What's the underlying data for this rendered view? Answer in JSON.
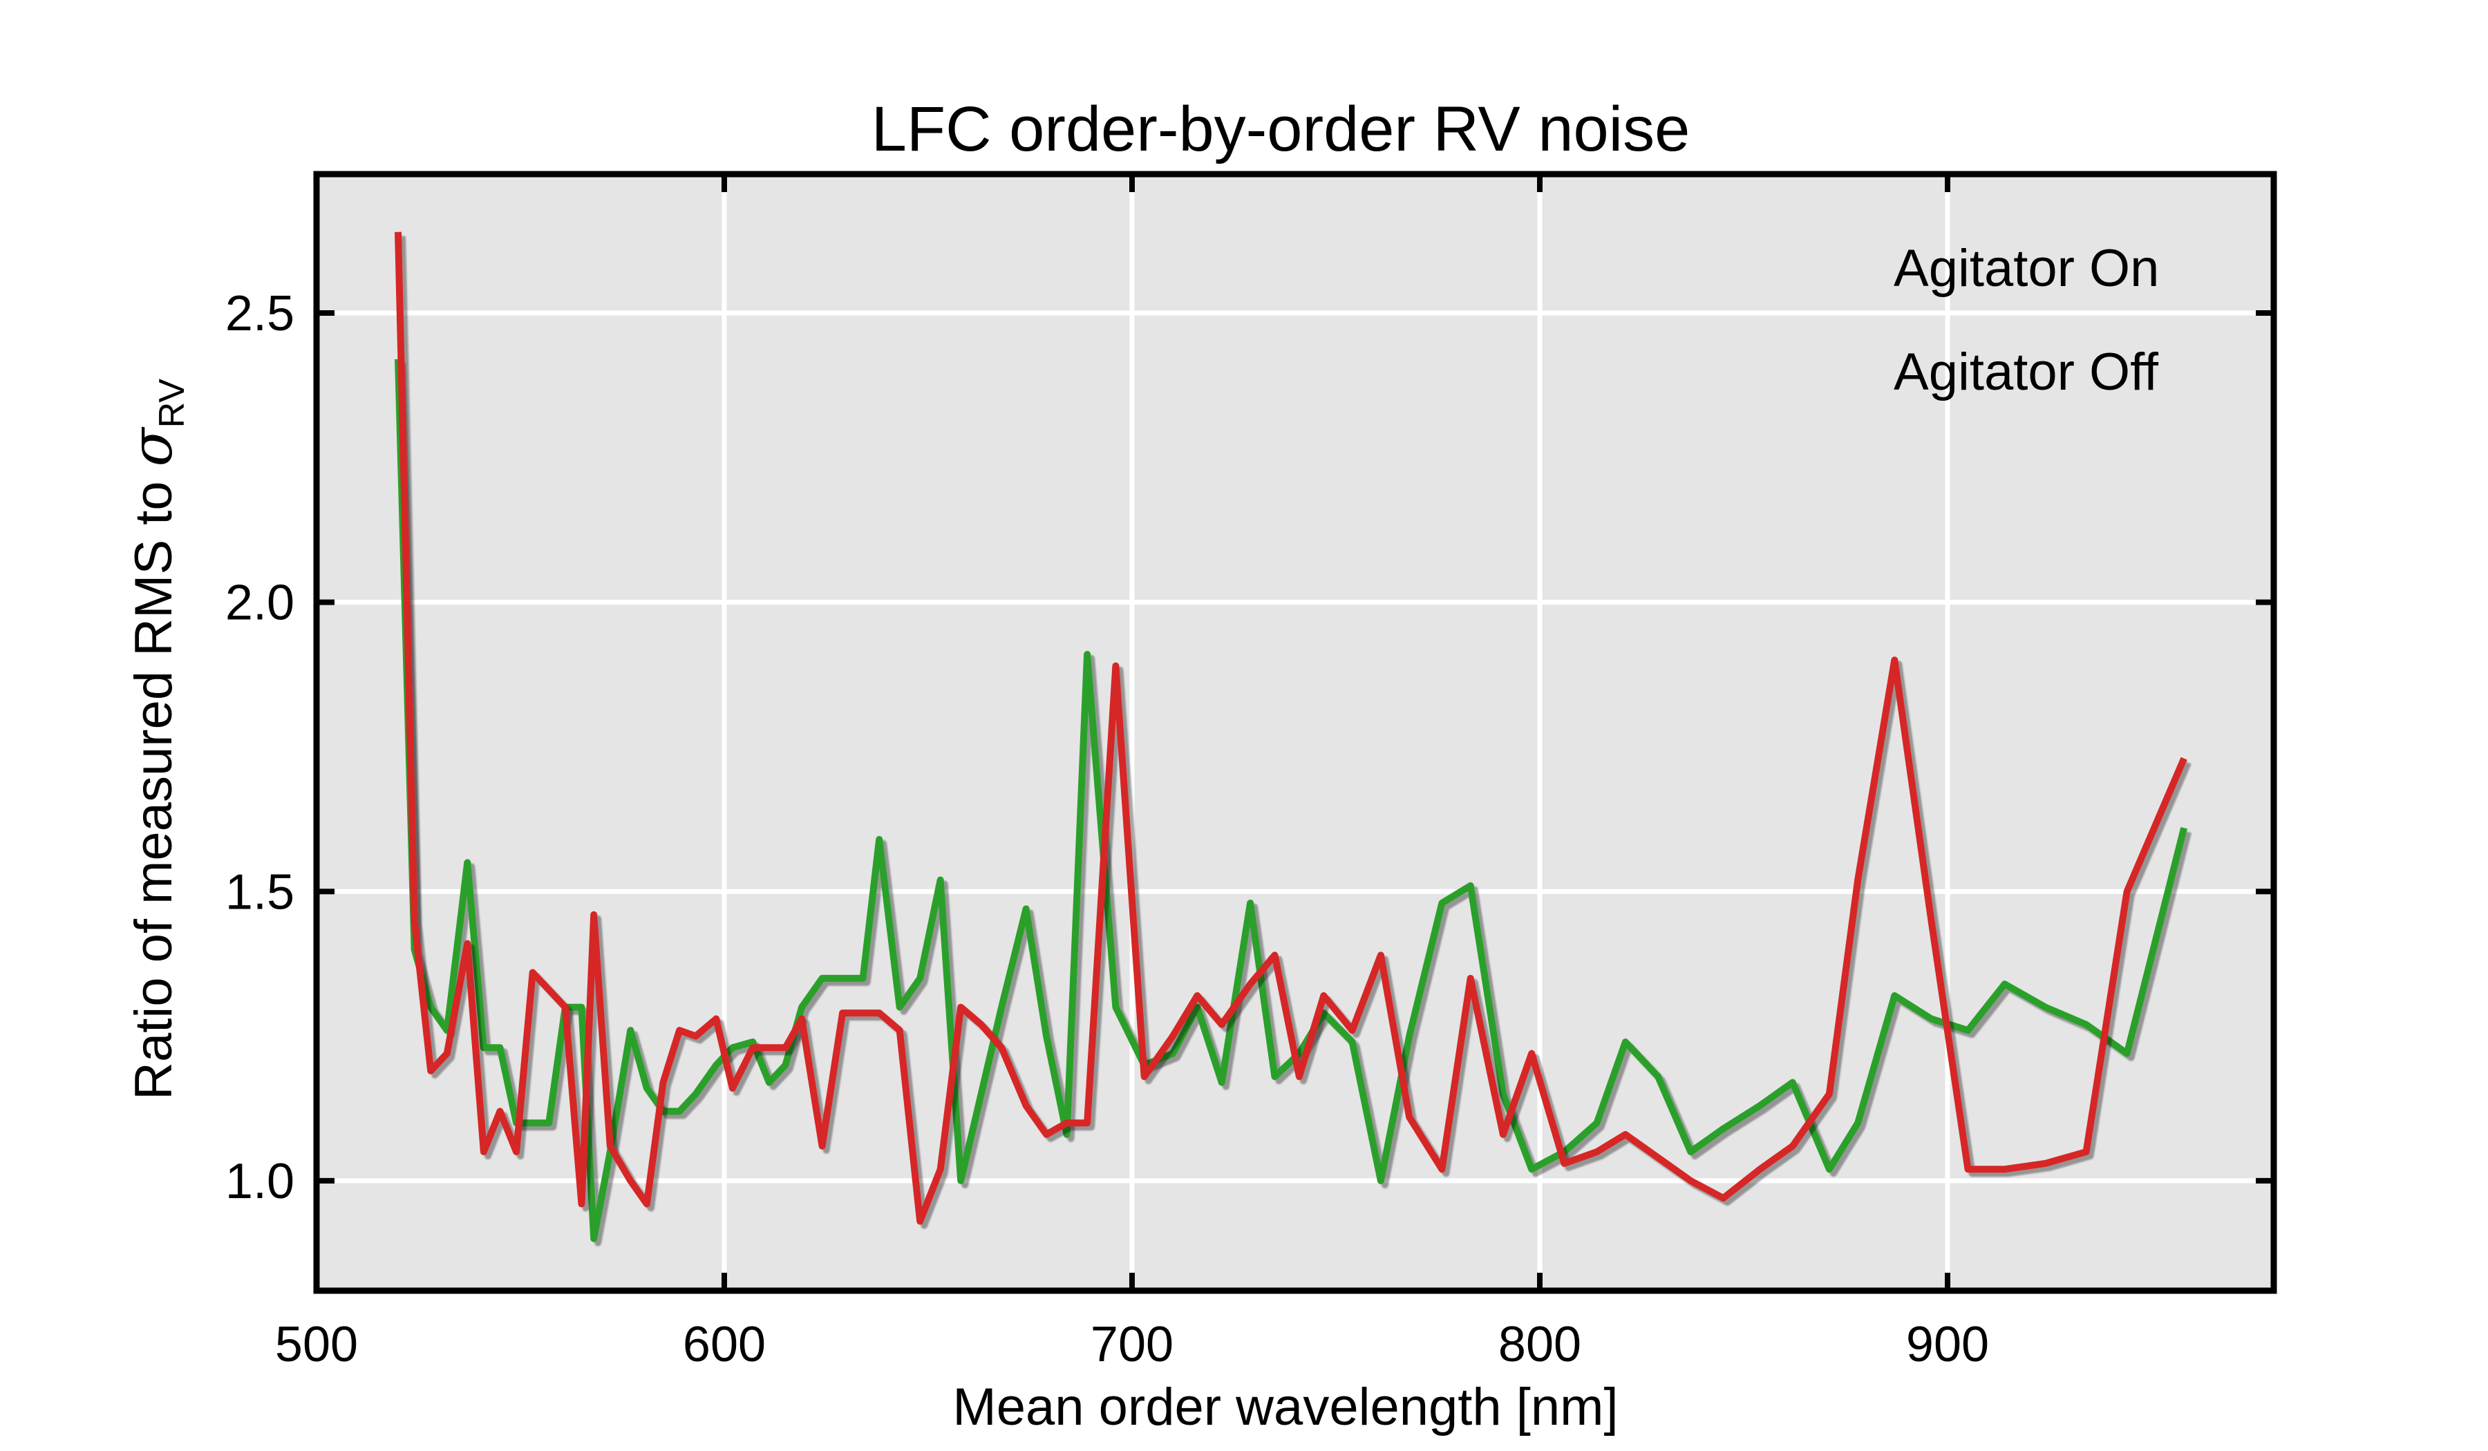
{
  "chart_data": {
    "type": "line",
    "title": "LFC order-by-order RV noise",
    "xlabel": "Mean order wavelength [nm]",
    "ylabel_main": "Ratio of measured RMS to ",
    "ylabel_symbol": "σ",
    "ylabel_subscript": "RV",
    "xlim": [
      500,
      980
    ],
    "ylim": [
      0.81,
      2.74
    ],
    "xticks": [
      500,
      600,
      700,
      800,
      900
    ],
    "xtick_labels": [
      "500",
      "600",
      "700",
      "800",
      "900"
    ],
    "yticks": [
      1.0,
      1.5,
      2.0,
      2.5
    ],
    "ytick_labels": [
      "1.0",
      "1.5",
      "2.0",
      "2.5"
    ],
    "grid": true,
    "legend_position": "top-right",
    "series": [
      {
        "name": "Agitator On",
        "color": "#2ca02c",
        "x": [
          520,
          524,
          528,
          532,
          537,
          541,
          545,
          549,
          553,
          557,
          561,
          565,
          568,
          572,
          577,
          581,
          585,
          589,
          593,
          598,
          602,
          607,
          611,
          615,
          619,
          624,
          629,
          634,
          638,
          643,
          648,
          653,
          658,
          663,
          668,
          674,
          679,
          684,
          689,
          696,
          703,
          710,
          716,
          722,
          729,
          735,
          741,
          747,
          754,
          761,
          768,
          776,
          783,
          791,
          798,
          806,
          814,
          821,
          829,
          837,
          845,
          854,
          862,
          871,
          878,
          887,
          896,
          905,
          914,
          924,
          934,
          944,
          958
        ],
        "values": [
          2.42,
          1.4,
          1.3,
          1.26,
          1.55,
          1.23,
          1.23,
          1.1,
          1.1,
          1.1,
          1.3,
          1.3,
          0.9,
          1.05,
          1.26,
          1.16,
          1.12,
          1.12,
          1.15,
          1.2,
          1.23,
          1.24,
          1.17,
          1.2,
          1.3,
          1.35,
          1.35,
          1.35,
          1.59,
          1.3,
          1.35,
          1.52,
          1.0,
          1.15,
          1.3,
          1.47,
          1.25,
          1.08,
          1.91,
          1.3,
          1.2,
          1.22,
          1.3,
          1.17,
          1.48,
          1.18,
          1.22,
          1.29,
          1.24,
          1.0,
          1.25,
          1.48,
          1.51,
          1.15,
          1.02,
          1.05,
          1.1,
          1.24,
          1.18,
          1.05,
          1.09,
          1.13,
          1.17,
          1.02,
          1.1,
          1.32,
          1.28,
          1.26,
          1.34,
          1.3,
          1.27,
          1.22,
          1.61
        ]
      },
      {
        "name": "Agitator Off",
        "color": "#d62728",
        "x": [
          520,
          524,
          528,
          532,
          537,
          541,
          545,
          549,
          553,
          557,
          561,
          565,
          568,
          572,
          577,
          581,
          585,
          589,
          593,
          598,
          602,
          607,
          611,
          615,
          619,
          624,
          629,
          634,
          638,
          643,
          648,
          653,
          658,
          663,
          668,
          674,
          679,
          684,
          689,
          696,
          703,
          710,
          716,
          722,
          729,
          735,
          741,
          747,
          754,
          761,
          768,
          776,
          783,
          791,
          798,
          806,
          814,
          821,
          829,
          837,
          845,
          854,
          862,
          871,
          878,
          887,
          896,
          905,
          914,
          924,
          934,
          944,
          958
        ],
        "values": [
          2.64,
          1.45,
          1.19,
          1.22,
          1.41,
          1.05,
          1.12,
          1.05,
          1.36,
          1.33,
          1.3,
          0.96,
          1.46,
          1.06,
          1.0,
          0.96,
          1.17,
          1.26,
          1.25,
          1.28,
          1.16,
          1.23,
          1.23,
          1.23,
          1.28,
          1.06,
          1.29,
          1.29,
          1.29,
          1.26,
          0.93,
          1.02,
          1.3,
          1.27,
          1.23,
          1.13,
          1.08,
          1.1,
          1.1,
          1.89,
          1.18,
          1.25,
          1.32,
          1.27,
          1.34,
          1.39,
          1.18,
          1.32,
          1.26,
          1.39,
          1.11,
          1.02,
          1.35,
          1.08,
          1.22,
          1.03,
          1.05,
          1.08,
          1.04,
          1.0,
          0.97,
          1.02,
          1.06,
          1.15,
          1.52,
          1.9,
          1.45,
          1.02,
          1.02,
          1.03,
          1.05,
          1.5,
          1.73
        ]
      }
    ]
  }
}
